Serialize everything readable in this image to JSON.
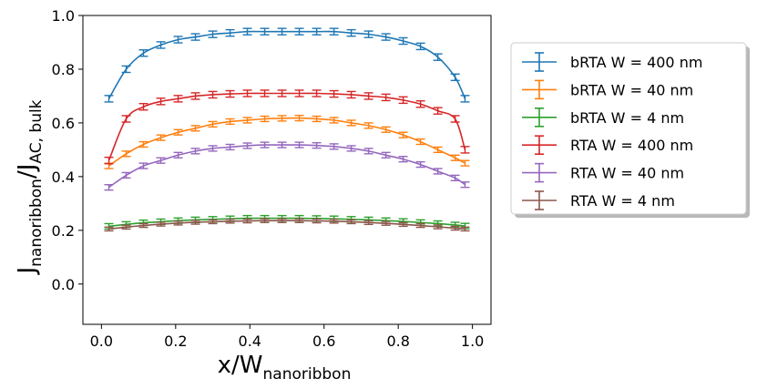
{
  "chart_data": {
    "type": "line",
    "xlabel": "x/W",
    "xlabel_sub": "nanoribbon",
    "ylabel": "J",
    "ylabel_sub1": "nanoribbon",
    "ylabel_mid": "/J",
    "ylabel_sub2": "AC, bulk",
    "xlim": [
      -0.05,
      1.05
    ],
    "ylim": [
      -0.15,
      1.0
    ],
    "xticks": [
      0.0,
      0.2,
      0.4,
      0.6,
      0.8,
      1.0
    ],
    "xtick_labels": [
      "0.0",
      "0.2",
      "0.4",
      "0.6",
      "0.8",
      "1.0"
    ],
    "yticks": [
      0.0,
      0.2,
      0.4,
      0.6,
      0.8,
      1.0
    ],
    "ytick_labels": [
      "0.0",
      "0.2",
      "0.4",
      "0.6",
      "0.8",
      "1.0"
    ],
    "legend_position": "right",
    "x": [
      0.02,
      0.0667,
      0.1133,
      0.16,
      0.2067,
      0.2533,
      0.3,
      0.3467,
      0.3933,
      0.44,
      0.4867,
      0.5333,
      0.58,
      0.6267,
      0.6733,
      0.72,
      0.7667,
      0.8133,
      0.86,
      0.9067,
      0.9533,
      0.98
    ],
    "series": [
      {
        "name": "bRTA  W = 400 nm",
        "color": "#1f77b4",
        "values": [
          0.69,
          0.8,
          0.86,
          0.89,
          0.91,
          0.92,
          0.93,
          0.935,
          0.94,
          0.94,
          0.94,
          0.94,
          0.94,
          0.94,
          0.935,
          0.93,
          0.92,
          0.905,
          0.885,
          0.845,
          0.77,
          0.69
        ],
        "err": 0.012
      },
      {
        "name": "bRTA  W = 40 nm",
        "color": "#ff7f0e",
        "values": [
          0.44,
          0.485,
          0.52,
          0.545,
          0.565,
          0.58,
          0.595,
          0.605,
          0.61,
          0.615,
          0.617,
          0.618,
          0.615,
          0.61,
          0.6,
          0.59,
          0.575,
          0.555,
          0.53,
          0.5,
          0.47,
          0.45
        ],
        "err": 0.01
      },
      {
        "name": "bRTA  W = 4 nm",
        "color": "#2ca02c",
        "values": [
          0.215,
          0.222,
          0.228,
          0.232,
          0.236,
          0.239,
          0.241,
          0.243,
          0.245,
          0.245,
          0.245,
          0.245,
          0.244,
          0.243,
          0.241,
          0.239,
          0.236,
          0.233,
          0.229,
          0.225,
          0.22,
          0.216
        ],
        "err": 0.01
      },
      {
        "name": "RTA  W = 400 nm",
        "color": "#d62728",
        "values": [
          0.46,
          0.615,
          0.66,
          0.68,
          0.69,
          0.7,
          0.705,
          0.708,
          0.71,
          0.71,
          0.71,
          0.71,
          0.71,
          0.708,
          0.705,
          0.7,
          0.695,
          0.685,
          0.67,
          0.645,
          0.615,
          0.5
        ],
        "err": 0.012
      },
      {
        "name": "RTA  W = 40 nm",
        "color": "#9467bd",
        "values": [
          0.36,
          0.405,
          0.44,
          0.46,
          0.48,
          0.495,
          0.505,
          0.51,
          0.515,
          0.518,
          0.518,
          0.518,
          0.516,
          0.512,
          0.505,
          0.495,
          0.48,
          0.465,
          0.445,
          0.42,
          0.395,
          0.37
        ],
        "err": 0.01
      },
      {
        "name": "RTA  W = 4 nm",
        "color": "#8c564b",
        "values": [
          0.205,
          0.212,
          0.218,
          0.223,
          0.227,
          0.23,
          0.232,
          0.234,
          0.235,
          0.236,
          0.236,
          0.236,
          0.235,
          0.234,
          0.232,
          0.229,
          0.226,
          0.222,
          0.218,
          0.213,
          0.208,
          0.205
        ],
        "err": 0.007
      }
    ]
  }
}
